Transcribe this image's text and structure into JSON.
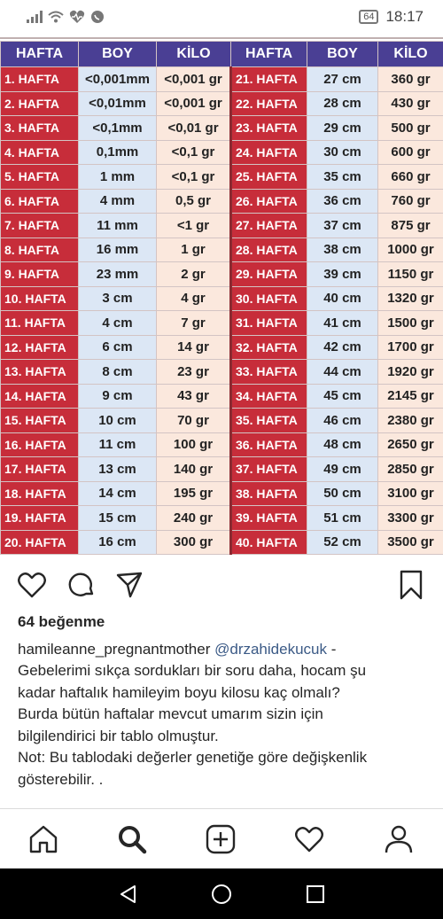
{
  "status_bar": {
    "time": "18:17",
    "battery": "64",
    "icons": [
      "signal-icon",
      "wifi-icon",
      "heart-monitor-icon",
      "whatsapp-icon"
    ]
  },
  "table": {
    "headers": [
      "HAFTA",
      "BOY",
      "KİLO",
      "HAFTA",
      "BOY",
      "KİLO"
    ],
    "rows": [
      [
        "1. HAFTA",
        "<0,001mm",
        "<0,001 gr",
        "21. HAFTA",
        "27 cm",
        "360 gr"
      ],
      [
        "2. HAFTA",
        "<0,01mm",
        "<0,001 gr",
        "22. HAFTA",
        "28 cm",
        "430 gr"
      ],
      [
        "3. HAFTA",
        "<0,1mm",
        "<0,01 gr",
        "23. HAFTA",
        "29 cm",
        "500 gr"
      ],
      [
        "4. HAFTA",
        "0,1mm",
        "<0,1 gr",
        "24. HAFTA",
        "30 cm",
        "600 gr"
      ],
      [
        "5. HAFTA",
        "1 mm",
        "<0,1 gr",
        "25. HAFTA",
        "35 cm",
        "660 gr"
      ],
      [
        "6. HAFTA",
        "4 mm",
        "0,5 gr",
        "26. HAFTA",
        "36 cm",
        "760 gr"
      ],
      [
        "7. HAFTA",
        "11 mm",
        "<1 gr",
        "27. HAFTA",
        "37 cm",
        "875 gr"
      ],
      [
        "8. HAFTA",
        "16 mm",
        "1 gr",
        "28. HAFTA",
        "38 cm",
        "1000 gr"
      ],
      [
        "9. HAFTA",
        "23 mm",
        "2 gr",
        "29. HAFTA",
        "39 cm",
        "1150 gr"
      ],
      [
        "10. HAFTA",
        "3 cm",
        "4 gr",
        "30. HAFTA",
        "40 cm",
        "1320 gr"
      ],
      [
        "11. HAFTA",
        "4 cm",
        "7 gr",
        "31. HAFTA",
        "41 cm",
        "1500 gr"
      ],
      [
        "12. HAFTA",
        "6 cm",
        "14 gr",
        "32. HAFTA",
        "42 cm",
        "1700 gr"
      ],
      [
        "13. HAFTA",
        "8 cm",
        "23 gr",
        "33. HAFTA",
        "44 cm",
        "1920 gr"
      ],
      [
        "14. HAFTA",
        "9 cm",
        "43 gr",
        "34. HAFTA",
        "45 cm",
        "2145 gr"
      ],
      [
        "15. HAFTA",
        "10 cm",
        "70 gr",
        "35. HAFTA",
        "46 cm",
        "2380 gr"
      ],
      [
        "16. HAFTA",
        "11 cm",
        "100 gr",
        "36. HAFTA",
        "48 cm",
        "2650 gr"
      ],
      [
        "17. HAFTA",
        "13 cm",
        "140 gr",
        "37. HAFTA",
        "49 cm",
        "2850 gr"
      ],
      [
        "18. HAFTA",
        "14 cm",
        "195 gr",
        "38. HAFTA",
        "50 cm",
        "3100 gr"
      ],
      [
        "19. HAFTA",
        "15 cm",
        "240 gr",
        "39. HAFTA",
        "51 cm",
        "3300 gr"
      ],
      [
        "20. HAFTA",
        "16 cm",
        "300 gr",
        "40. HAFTA",
        "52 cm",
        "3500 gr"
      ]
    ]
  },
  "actions": {
    "icons": [
      "heart-icon",
      "comment-icon",
      "share-icon",
      "bookmark-icon"
    ]
  },
  "post": {
    "likes": "64 beğenme",
    "username": "hamileanne_pregnantmother",
    "mention": "@drzahidekucuk",
    "dash": " -",
    "caption_lines": [
      "Gebelerimi  sıkça sordukları bir soru daha, hocam şu",
      "kadar haftalık hamileyim boyu kilosu kaç olmalı?",
      "Burda bütün haftalar mevcut umarım sizin için",
      "bilgilendirici bir tablo olmuştur.",
      "Not: Bu tablodaki değerler genetiğe göre değişkenlik",
      "gösterebilir. ."
    ]
  },
  "bottom_nav": {
    "icons": [
      "home-icon",
      "search-icon",
      "add-post-icon",
      "activity-heart-icon",
      "profile-icon"
    ]
  },
  "system_nav": {
    "icons": [
      "back-icon",
      "home-circle-icon",
      "recents-icon"
    ]
  },
  "colors": {
    "header": "#4a3f94",
    "week_cell": "#c72d3a",
    "boy_cell": "#dce7f5",
    "kilo_cell": "#fbe8dd",
    "mention": "#3b5a86"
  }
}
